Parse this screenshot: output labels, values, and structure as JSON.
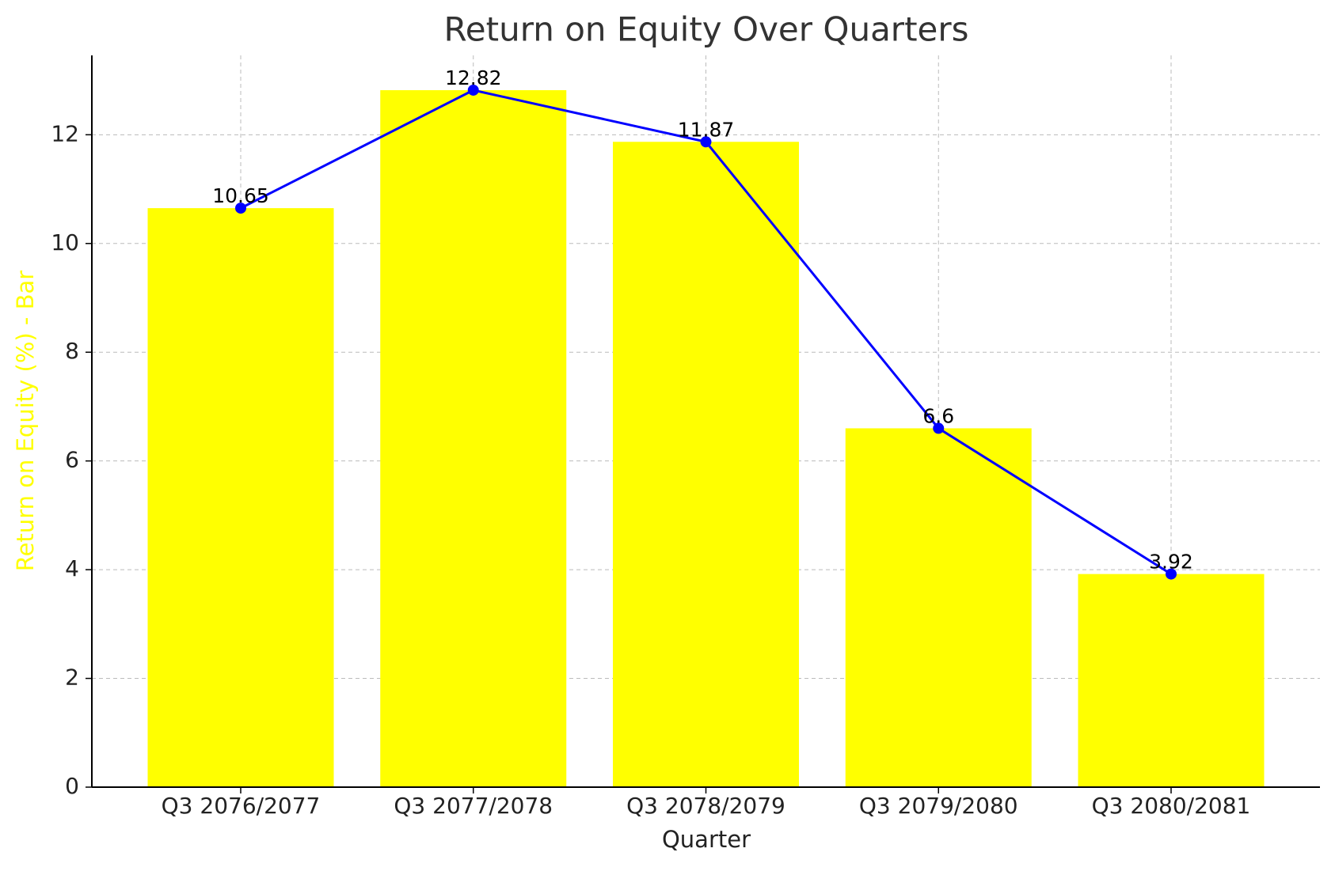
{
  "chart_data": {
    "type": "bar",
    "title": "Return on Equity Over Quarters",
    "x_label": "Quarter",
    "y_label": "Return on Equity (%) - Bar",
    "y_label_color": "#ffff00",
    "categories": [
      "Q3 2076/2077",
      "Q3 2077/2078",
      "Q3 2078/2079",
      "Q3 2079/2080",
      "Q3 2080/2081"
    ],
    "series": [
      {
        "type": "bar",
        "color": "#ffff00",
        "values": [
          10.65,
          12.82,
          11.87,
          6.6,
          3.92
        ]
      },
      {
        "type": "line",
        "color": "#0000ff",
        "values": [
          10.65,
          12.82,
          11.87,
          6.6,
          3.92
        ]
      }
    ],
    "ylim": [
      0,
      13.46
    ],
    "yticks": [
      0,
      2,
      4,
      6,
      8,
      10,
      12
    ],
    "grid": true
  }
}
